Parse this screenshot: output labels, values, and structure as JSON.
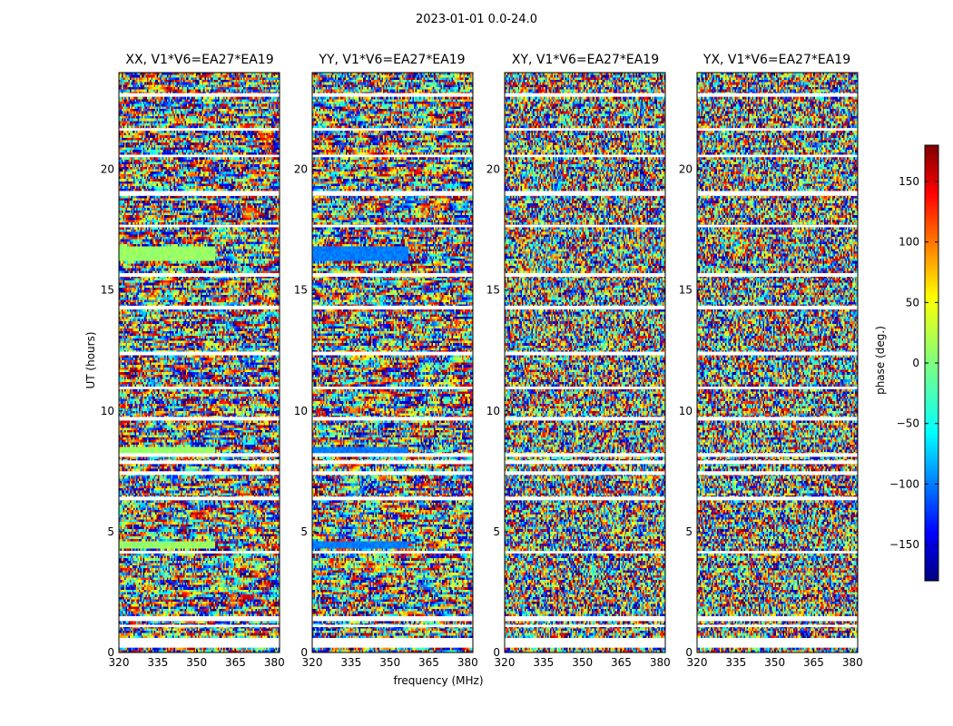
{
  "chart_data": {
    "type": "heatmap",
    "title": "2023-01-01 0.0-24.0",
    "panels": [
      {
        "title": "XX, V1*V6=EA27*EA19"
      },
      {
        "title": "YY, V1*V6=EA27*EA19"
      },
      {
        "title": "XY, V1*V6=EA27*EA19"
      },
      {
        "title": "YX, V1*V6=EA27*EA19"
      }
    ],
    "xlabel": "frequency (MHz)",
    "ylabel": "UT (hours)",
    "xlim": [
      320,
      382
    ],
    "ylim": [
      0,
      24
    ],
    "xticks": [
      320,
      335,
      350,
      365,
      380
    ],
    "yticks": [
      0,
      5,
      10,
      15,
      20
    ],
    "colorbar": {
      "label": "phase (deg.)",
      "range": [
        -180,
        180
      ],
      "ticks": [
        -150,
        -100,
        -50,
        0,
        50,
        100,
        150
      ],
      "tick_labels": [
        "−150",
        "−100",
        "−50",
        "0",
        "50",
        "100",
        "150"
      ]
    },
    "value_range": [
      -180,
      180
    ],
    "flagged_time_bands_hours": [
      [
        0.2,
        0.6
      ],
      [
        1.05,
        1.15
      ],
      [
        1.3,
        1.5
      ],
      [
        4.1,
        4.2
      ],
      [
        6.3,
        6.45
      ],
      [
        7.35,
        7.5
      ],
      [
        7.8,
        7.95
      ],
      [
        8.1,
        8.25
      ],
      [
        9.6,
        9.75
      ],
      [
        10.9,
        11.0
      ],
      [
        12.3,
        12.45
      ],
      [
        14.2,
        14.35
      ],
      [
        15.55,
        15.7
      ],
      [
        17.6,
        17.7
      ],
      [
        18.9,
        19.1
      ],
      [
        20.5,
        20.6
      ],
      [
        21.6,
        21.7
      ],
      [
        23.0,
        23.15
      ]
    ]
  }
}
